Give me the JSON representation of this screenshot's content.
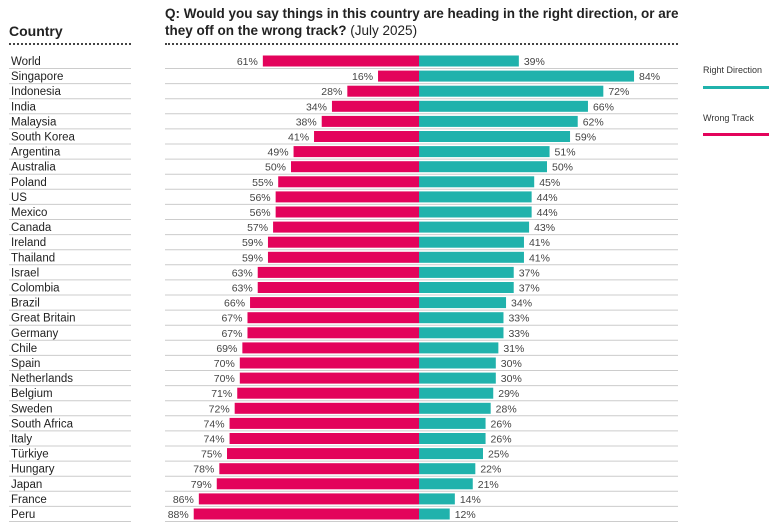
{
  "header": {
    "country_label": "Country",
    "question_bold": "Q: Would you say things in this country are heading in the right direction, or are they off on the wrong track?",
    "question_date": "(July 2025)"
  },
  "chart_data": {
    "type": "bar",
    "orientation": "horizontal-diverging",
    "title": "Q: Would you say things in this country are heading in the right direction, or are they off on the wrong track? (July 2025)",
    "categories": [
      "World",
      "Singapore",
      "Indonesia",
      "India",
      "Malaysia",
      "South Korea",
      "Argentina",
      "Australia",
      "Poland",
      "US",
      "Mexico",
      "Canada",
      "Ireland",
      "Thailand",
      "Israel",
      "Colombia",
      "Brazil",
      "Great Britain",
      "Germany",
      "Chile",
      "Spain",
      "Netherlands",
      "Belgium",
      "Sweden",
      "South Africa",
      "Italy",
      "Türkiye",
      "Hungary",
      "Japan",
      "France",
      "Peru"
    ],
    "series": [
      {
        "name": "Wrong Track",
        "color": "#e3035b",
        "values": [
          61,
          16,
          28,
          34,
          38,
          41,
          49,
          50,
          55,
          56,
          56,
          57,
          59,
          59,
          63,
          63,
          66,
          67,
          67,
          69,
          70,
          70,
          71,
          72,
          74,
          74,
          75,
          78,
          79,
          86,
          88
        ]
      },
      {
        "name": "Right Direction",
        "color": "#20b2ac",
        "values": [
          39,
          84,
          72,
          66,
          62,
          59,
          51,
          50,
          45,
          44,
          44,
          43,
          41,
          41,
          37,
          37,
          34,
          33,
          33,
          31,
          30,
          30,
          29,
          28,
          26,
          26,
          25,
          22,
          21,
          14,
          12
        ]
      }
    ],
    "unit": "%",
    "legend": [
      "Right Direction",
      "Wrong Track"
    ],
    "legend_placement": "right"
  }
}
